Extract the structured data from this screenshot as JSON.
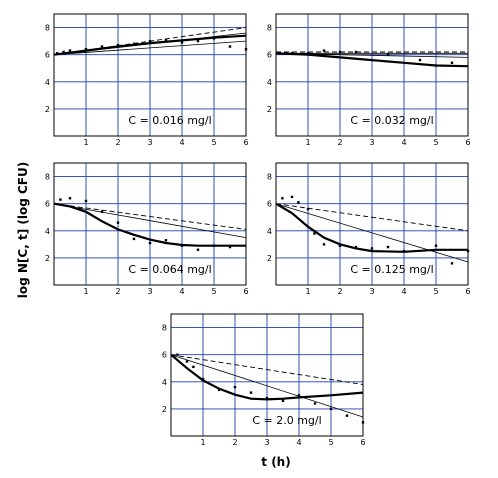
{
  "ylabel": "log N[C, t] (log CFU)",
  "xlabel": "t (h)",
  "chart_data": [
    {
      "type": "scatter",
      "annotation": "C = 0.016 mg/l",
      "xlim": [
        0,
        6
      ],
      "ylim": [
        0,
        9
      ],
      "xticks": [
        "1",
        "2",
        "3",
        "4",
        "5",
        "6"
      ],
      "yticks": [
        "2",
        "4",
        "6",
        "8"
      ],
      "grid": true,
      "points": [
        [
          0.1,
          6.1
        ],
        [
          0.3,
          6.2
        ],
        [
          0.5,
          6.3
        ],
        [
          1,
          6.4
        ],
        [
          1.5,
          6.6
        ],
        [
          2,
          6.7
        ],
        [
          2.5,
          6.8
        ],
        [
          3,
          7.0
        ],
        [
          3.5,
          7.1
        ],
        [
          4,
          6.9
        ],
        [
          4.5,
          7.0
        ],
        [
          5,
          7.2
        ],
        [
          5.5,
          6.6
        ],
        [
          6,
          6.4
        ]
      ],
      "series": [
        {
          "values": [
            [
              0,
              6.0
            ],
            [
              1,
              6.3
            ],
            [
              2,
              6.6
            ],
            [
              3,
              6.85
            ],
            [
              4,
              7.05
            ],
            [
              5,
              7.25
            ],
            [
              6,
              7.4
            ]
          ],
          "style": "thick"
        },
        {
          "values": [
            [
              0,
              6.0
            ],
            [
              6,
              8.0
            ]
          ],
          "style": "dashed"
        },
        {
          "values": [
            [
              0,
              6.0
            ],
            [
              6,
              7.0
            ]
          ],
          "style": "thin"
        },
        {
          "values": [
            [
              0,
              6.0
            ],
            [
              6,
              7.6
            ]
          ],
          "style": "thin"
        }
      ]
    },
    {
      "type": "scatter",
      "annotation": "C = 0.032 mg/l",
      "xlim": [
        0,
        6
      ],
      "ylim": [
        0,
        9
      ],
      "xticks": [
        "1",
        "2",
        "3",
        "4",
        "5",
        "6"
      ],
      "yticks": [
        "2",
        "4",
        "6",
        "8"
      ],
      "grid": true,
      "points": [
        [
          0.3,
          6.1
        ],
        [
          0.5,
          6.1
        ],
        [
          1,
          6.1
        ],
        [
          1.5,
          6.3
        ],
        [
          2,
          6.2
        ],
        [
          2.5,
          6.2
        ],
        [
          3.5,
          6.0
        ],
        [
          4.5,
          5.6
        ],
        [
          5,
          5.2
        ],
        [
          5.5,
          5.4
        ]
      ],
      "series": [
        {
          "values": [
            [
              0,
              6.1
            ],
            [
              1,
              6.0
            ],
            [
              2,
              5.8
            ],
            [
              3,
              5.6
            ],
            [
              4,
              5.4
            ],
            [
              5,
              5.2
            ],
            [
              6,
              5.15
            ]
          ],
          "style": "thick"
        },
        {
          "values": [
            [
              0,
              6.2
            ],
            [
              6,
              6.2
            ]
          ],
          "style": "dashed"
        },
        {
          "values": [
            [
              0,
              6.1
            ],
            [
              6,
              5.8
            ]
          ],
          "style": "thin"
        },
        {
          "values": [
            [
              0,
              6.1
            ],
            [
              6,
              6.1
            ]
          ],
          "style": "thin"
        }
      ]
    },
    {
      "type": "scatter",
      "annotation": "C = 0.064 mg/l",
      "xlim": [
        0,
        6
      ],
      "ylim": [
        0,
        9
      ],
      "xticks": [
        "1",
        "2",
        "3",
        "4",
        "5",
        "6"
      ],
      "yticks": [
        "2",
        "4",
        "6",
        "8"
      ],
      "grid": true,
      "points": [
        [
          0.2,
          6.3
        ],
        [
          0.5,
          6.4
        ],
        [
          1,
          6.2
        ],
        [
          1.5,
          5.4
        ],
        [
          2,
          4.6
        ],
        [
          2.5,
          3.4
        ],
        [
          3,
          3.1
        ],
        [
          3.5,
          3.3
        ],
        [
          4,
          2.9
        ],
        [
          4.5,
          2.6
        ],
        [
          5,
          2.9
        ],
        [
          5.5,
          2.8
        ]
      ],
      "series": [
        {
          "values": [
            [
              0,
              6.0
            ],
            [
              0.5,
              5.8
            ],
            [
              1,
              5.4
            ],
            [
              1.5,
              4.7
            ],
            [
              2,
              4.1
            ],
            [
              2.5,
              3.7
            ],
            [
              3,
              3.35
            ],
            [
              3.5,
              3.1
            ],
            [
              4,
              2.95
            ],
            [
              4.5,
              2.9
            ],
            [
              5,
              2.9
            ],
            [
              6,
              2.9
            ]
          ],
          "style": "thick"
        },
        {
          "values": [
            [
              0,
              6.0
            ],
            [
              6,
              4.1
            ]
          ],
          "style": "dashed"
        },
        {
          "values": [
            [
              0,
              6.0
            ],
            [
              6,
              3.5
            ]
          ],
          "style": "thin"
        }
      ]
    },
    {
      "type": "scatter",
      "annotation": "C = 0.125 mg/l",
      "xlim": [
        0,
        6
      ],
      "ylim": [
        0,
        9
      ],
      "xticks": [
        "1",
        "2",
        "3",
        "4",
        "5",
        "6"
      ],
      "yticks": [
        "2",
        "4",
        "6",
        "8"
      ],
      "grid": true,
      "points": [
        [
          0.2,
          6.4
        ],
        [
          0.5,
          6.5
        ],
        [
          0.7,
          6.1
        ],
        [
          1,
          5.6
        ],
        [
          1.2,
          3.8
        ],
        [
          1.5,
          3.0
        ],
        [
          2,
          2.9
        ],
        [
          2.5,
          2.8
        ],
        [
          3,
          2.7
        ],
        [
          3.5,
          2.8
        ],
        [
          4,
          2.5
        ],
        [
          5,
          2.9
        ],
        [
          5.5,
          1.6
        ],
        [
          6,
          2.5
        ]
      ],
      "series": [
        {
          "values": [
            [
              0,
              6.0
            ],
            [
              0.5,
              5.3
            ],
            [
              1,
              4.3
            ],
            [
              1.5,
              3.5
            ],
            [
              2,
              3.0
            ],
            [
              2.5,
              2.7
            ],
            [
              3,
              2.5
            ],
            [
              4,
              2.45
            ],
            [
              5,
              2.6
            ],
            [
              6,
              2.6
            ]
          ],
          "style": "thick"
        },
        {
          "values": [
            [
              0,
              6.0
            ],
            [
              6,
              4.0
            ]
          ],
          "style": "dashed"
        },
        {
          "values": [
            [
              0,
              6.0
            ],
            [
              6,
              1.7
            ]
          ],
          "style": "thin"
        }
      ]
    },
    {
      "type": "scatter",
      "annotation": "C = 2.0 mg/l",
      "xlim": [
        0,
        6
      ],
      "ylim": [
        0,
        9
      ],
      "xticks": [
        "1",
        "2",
        "3",
        "4",
        "5",
        "6"
      ],
      "yticks": [
        "2",
        "4",
        "6",
        "8"
      ],
      "grid": true,
      "points": [
        [
          0.2,
          6.0
        ],
        [
          0.5,
          5.5
        ],
        [
          0.7,
          5.1
        ],
        [
          1,
          4.2
        ],
        [
          1.5,
          3.4
        ],
        [
          2,
          3.6
        ],
        [
          2.5,
          3.2
        ],
        [
          3,
          2.8
        ],
        [
          3.5,
          2.6
        ],
        [
          4,
          3.0
        ],
        [
          4.5,
          2.4
        ],
        [
          5,
          2.0
        ],
        [
          5.5,
          1.5
        ],
        [
          6,
          1.0
        ]
      ],
      "series": [
        {
          "values": [
            [
              0,
              6.0
            ],
            [
              0.5,
              5.0
            ],
            [
              1,
              4.1
            ],
            [
              1.5,
              3.5
            ],
            [
              2,
              3.05
            ],
            [
              2.5,
              2.75
            ],
            [
              3,
              2.7
            ],
            [
              3.5,
              2.75
            ],
            [
              4,
              2.85
            ],
            [
              5,
              3.0
            ],
            [
              6,
              3.2
            ]
          ],
          "style": "thick"
        },
        {
          "values": [
            [
              0,
              6.0
            ],
            [
              6,
              3.8
            ]
          ],
          "style": "dashed"
        },
        {
          "values": [
            [
              0,
              6.0
            ],
            [
              6,
              1.4
            ]
          ],
          "style": "thin"
        }
      ]
    }
  ]
}
